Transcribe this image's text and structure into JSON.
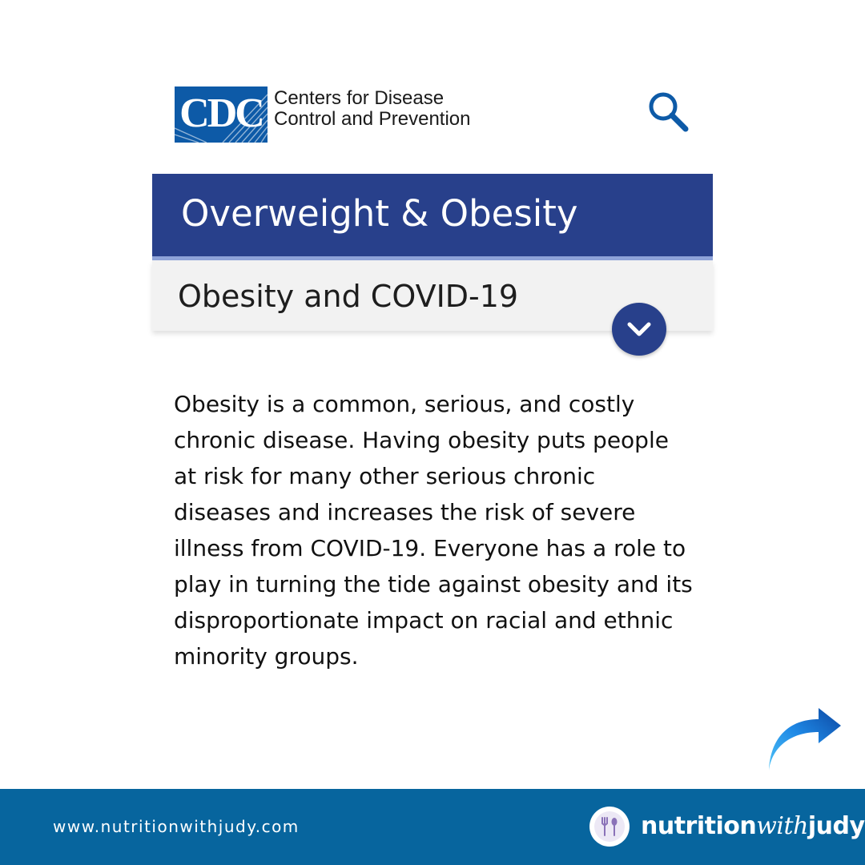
{
  "header": {
    "logo_letters": "CDC",
    "org_name_line1": "Centers for Disease",
    "org_name_line2": "Control and Prevention",
    "search_icon": "search-icon"
  },
  "page": {
    "title": "Overweight & Obesity",
    "subtitle": "Obesity and COVID-19",
    "expand_icon": "chevron-down-icon"
  },
  "content": {
    "paragraph_lines": [
      "Obesity is a common, serious, and costly",
      "chronic disease. Having obesity puts people",
      "at risk for many other serious chronic",
      "diseases and increases the risk of severe",
      "illness from COVID-19. Everyone has a role to",
      "play in turning the tide against obesity and its",
      "disproportionate impact on racial and ethnic",
      "minority groups."
    ]
  },
  "next_icon": "curved-arrow-right-icon",
  "footer": {
    "url": "www.nutritionwithjudy.com",
    "brand_part1": "nutrition",
    "brand_part2": "with",
    "brand_part3": "judy",
    "brand_icon": "fork-spoon-icon"
  },
  "colors": {
    "cdc_blue": "#0d5aa7",
    "title_bar": "#28408b",
    "accent_line": "#8ea3d9",
    "subtitle_bg": "#f2f2f2",
    "footer_bg": "#07659e",
    "arrow_blue": "#1565c0"
  }
}
